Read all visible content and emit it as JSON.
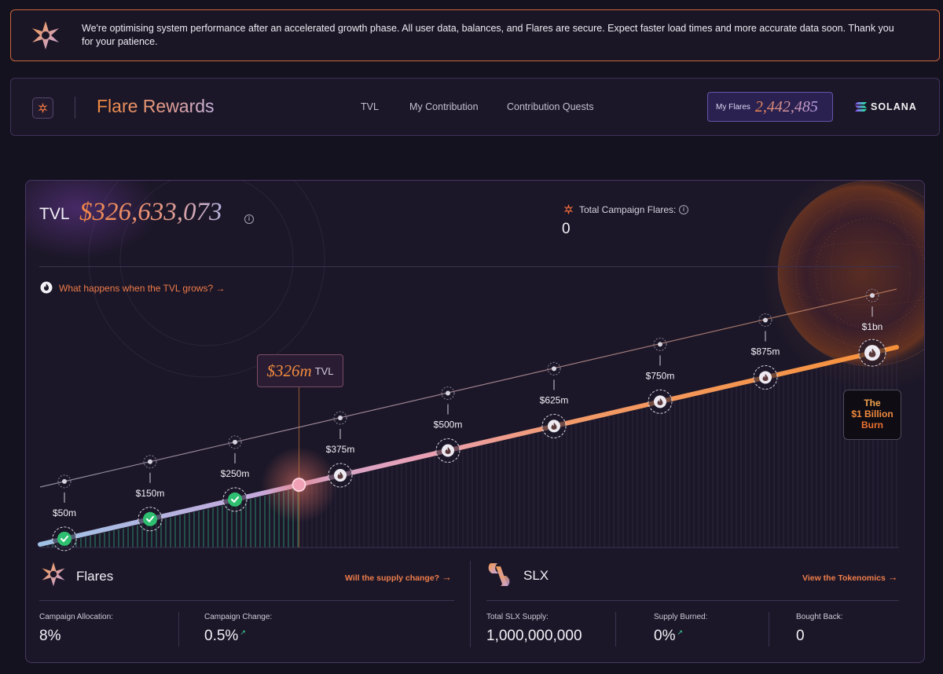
{
  "banner": {
    "message": "We're optimising system performance after an accelerated growth phase. All user data, balances, and Flares are secure. Expect faster load times and more accurate data soon. Thank you for your patience."
  },
  "nav": {
    "title": "Flare Rewards",
    "links": [
      "TVL",
      "My Contribution",
      "Contribution Quests"
    ],
    "my_flares_label": "My Flares",
    "my_flares_value": "2,442,485",
    "chain": "SOLANA"
  },
  "tvl": {
    "label": "TVL",
    "value": "$326,633,073",
    "campaign_flares_label": "Total Campaign Flares:",
    "campaign_flares_value": "0",
    "growth_link": "What happens when the TVL grows?",
    "current_marker_value": "$326m",
    "current_marker_unit": "TVL",
    "current_value_m": 326
  },
  "milestones": [
    {
      "label": "$50m",
      "value_m": 50,
      "status": "complete"
    },
    {
      "label": "$150m",
      "value_m": 150,
      "status": "complete"
    },
    {
      "label": "$250m",
      "value_m": 250,
      "status": "complete"
    },
    {
      "label": "$375m",
      "value_m": 375,
      "status": "pending"
    },
    {
      "label": "$500m",
      "value_m": 500,
      "status": "pending"
    },
    {
      "label": "$625m",
      "value_m": 625,
      "status": "pending"
    },
    {
      "label": "$750m",
      "value_m": 750,
      "status": "pending"
    },
    {
      "label": "$875m",
      "value_m": 875,
      "status": "pending"
    },
    {
      "label": "$1bn",
      "value_m": 1000,
      "status": "pending"
    }
  ],
  "burn_badge": {
    "line1": "The",
    "line2": "$1 Billion",
    "line3": "Burn"
  },
  "flares_panel": {
    "title": "Flares",
    "link": "Will the supply change?",
    "stats": [
      {
        "label": "Campaign Allocation:",
        "value": "8%"
      },
      {
        "label": "Campaign Change:",
        "value": "0.5%"
      }
    ]
  },
  "slx_panel": {
    "title": "SLX",
    "link": "View the Tokenomics",
    "stats": [
      {
        "label": "Total SLX Supply:",
        "value": "1,000,000,000"
      },
      {
        "label": "Supply Burned:",
        "value": "0%"
      },
      {
        "label": "Bought Back:",
        "value": "0"
      }
    ]
  },
  "colors": {
    "accent_orange": "#f08a3e",
    "complete_green": "#2fbf71",
    "border_purple": "#473663"
  }
}
